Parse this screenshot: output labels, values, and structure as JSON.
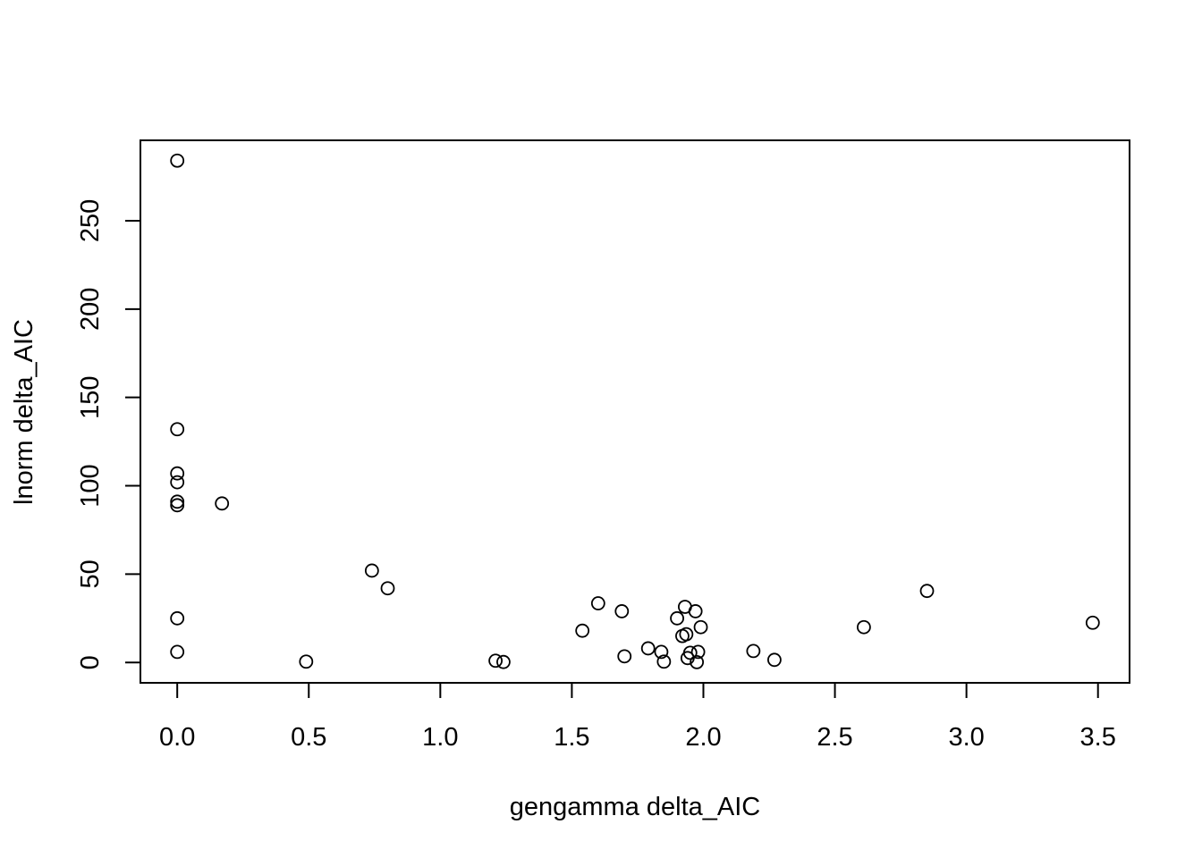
{
  "chart_data": {
    "type": "scatter",
    "title": "",
    "xlabel": "gengamma delta_AIC",
    "ylabel": "lnorm delta_AIC",
    "xlim": [
      -0.14,
      3.62
    ],
    "ylim": [
      -11.5,
      295.5
    ],
    "x_ticks": [
      0.0,
      0.5,
      1.0,
      1.5,
      2.0,
      2.5,
      3.0,
      3.5
    ],
    "x_tick_labels": [
      "0.0",
      "0.5",
      "1.0",
      "1.5",
      "2.0",
      "2.5",
      "3.0",
      "3.5"
    ],
    "y_ticks": [
      0,
      50,
      100,
      150,
      200,
      250
    ],
    "y_tick_labels": [
      "0",
      "50",
      "100",
      "150",
      "200",
      "250"
    ],
    "marker": "open-circle",
    "grid": false,
    "legend": false,
    "points": [
      {
        "x": 0.0,
        "y": 284
      },
      {
        "x": 0.0,
        "y": 132
      },
      {
        "x": 0.0,
        "y": 107
      },
      {
        "x": 0.0,
        "y": 102
      },
      {
        "x": 0.0,
        "y": 91
      },
      {
        "x": 0.0,
        "y": 89
      },
      {
        "x": 0.0,
        "y": 25
      },
      {
        "x": 0.0,
        "y": 6
      },
      {
        "x": 0.17,
        "y": 90
      },
      {
        "x": 0.49,
        "y": 0.5
      },
      {
        "x": 0.74,
        "y": 52
      },
      {
        "x": 0.8,
        "y": 42
      },
      {
        "x": 1.21,
        "y": 1
      },
      {
        "x": 1.24,
        "y": 0.3
      },
      {
        "x": 1.54,
        "y": 18
      },
      {
        "x": 1.6,
        "y": 33.5
      },
      {
        "x": 1.69,
        "y": 29
      },
      {
        "x": 1.7,
        "y": 3.5
      },
      {
        "x": 1.79,
        "y": 8
      },
      {
        "x": 1.84,
        "y": 6
      },
      {
        "x": 1.85,
        "y": 0.5
      },
      {
        "x": 1.9,
        "y": 25
      },
      {
        "x": 1.92,
        "y": 15
      },
      {
        "x": 1.93,
        "y": 31.5
      },
      {
        "x": 1.935,
        "y": 16
      },
      {
        "x": 1.94,
        "y": 2.5
      },
      {
        "x": 1.95,
        "y": 5.5
      },
      {
        "x": 1.97,
        "y": 29
      },
      {
        "x": 1.975,
        "y": 0.2
      },
      {
        "x": 1.98,
        "y": 6
      },
      {
        "x": 1.99,
        "y": 20
      },
      {
        "x": 2.19,
        "y": 6.5
      },
      {
        "x": 2.27,
        "y": 1.5
      },
      {
        "x": 2.61,
        "y": 20
      },
      {
        "x": 2.85,
        "y": 40.5
      },
      {
        "x": 3.48,
        "y": 22.5
      }
    ]
  }
}
